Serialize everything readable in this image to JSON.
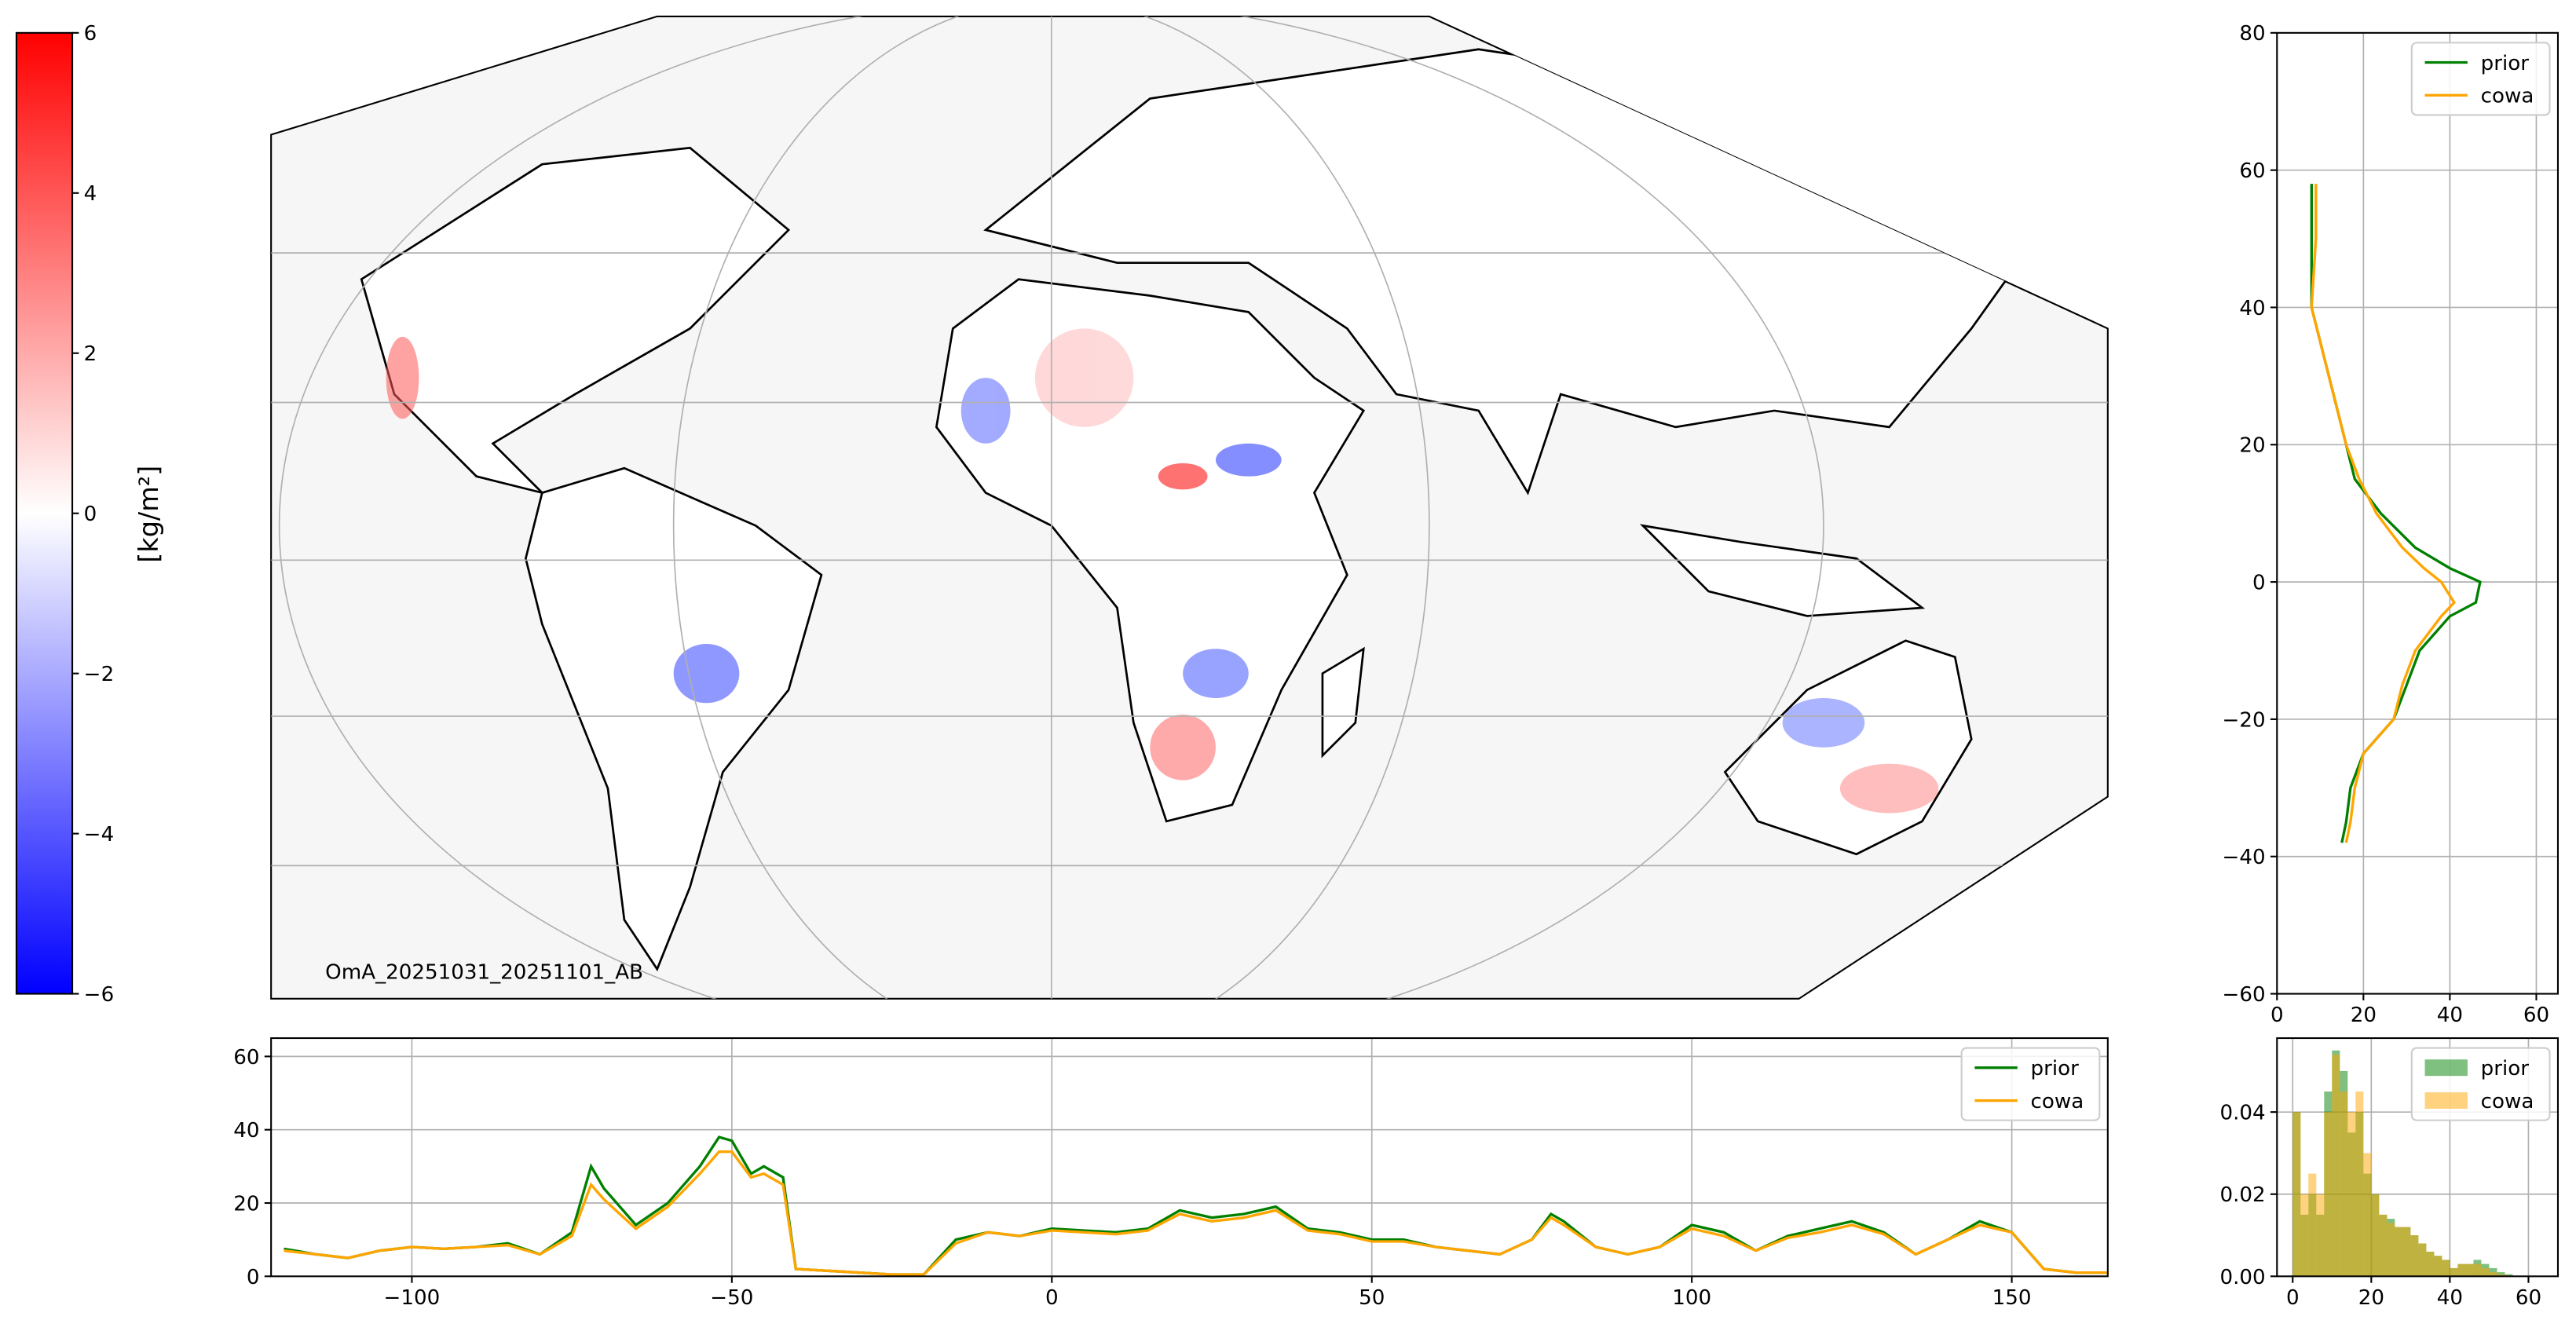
{
  "chart_data": [
    {
      "type": "colorbar",
      "label": "[kg/m²]",
      "colors": [
        "#0000ff",
        "#ffffff",
        "#ff0000"
      ],
      "ylim": [
        -6,
        6
      ],
      "yticks": [
        {
          "value": -6,
          "label": "−6"
        },
        {
          "value": -4,
          "label": "−4"
        },
        {
          "value": -2,
          "label": "−2"
        },
        0,
        2,
        4,
        6
      ]
    },
    {
      "type": "map",
      "annotation": "OmA_20251031_20251101_AB",
      "grid": true
    },
    {
      "type": "line",
      "xlim": [
        -122,
        165
      ],
      "ylim": [
        0,
        65
      ],
      "xticks": [
        {
          "value": -100,
          "label": "−100"
        },
        {
          "value": -50,
          "label": "−50"
        },
        0,
        50,
        100,
        150
      ],
      "yticks": [
        0,
        20,
        40,
        60
      ],
      "grid": true,
      "legend": "upper right",
      "x": [
        -120,
        -115,
        -110,
        -105,
        -100,
        -95,
        -90,
        -85,
        -80,
        -75,
        -72,
        -70,
        -65,
        -60,
        -55,
        -52,
        -50,
        -47,
        -45,
        -42,
        -40,
        -35,
        -30,
        -25,
        -20,
        -15,
        -10,
        -5,
        0,
        5,
        10,
        15,
        20,
        25,
        30,
        35,
        40,
        45,
        50,
        55,
        60,
        65,
        70,
        75,
        78,
        80,
        85,
        90,
        95,
        100,
        105,
        110,
        115,
        120,
        125,
        130,
        135,
        140,
        145,
        150,
        155,
        160,
        165
      ],
      "series": [
        {
          "name": "prior",
          "color": "#008000",
          "values": [
            7.5,
            6,
            5,
            7,
            8,
            7.5,
            8,
            9,
            6,
            12,
            30,
            24,
            14,
            20,
            30,
            38,
            37,
            28,
            30,
            27,
            2,
            1.5,
            1,
            0.5,
            0.5,
            10,
            12,
            11,
            13,
            12.5,
            12,
            13,
            18,
            16,
            17,
            19,
            13,
            12,
            10,
            10,
            8,
            7,
            6,
            10,
            17,
            15,
            8,
            6,
            8,
            14,
            12,
            7,
            11,
            13,
            15,
            12,
            6,
            10,
            15,
            12,
            2,
            1,
            1
          ]
        },
        {
          "name": "cowa",
          "color": "#ffa500",
          "values": [
            7,
            6,
            5,
            7,
            8,
            7.5,
            8,
            8.5,
            6,
            11,
            25,
            21,
            13,
            19,
            28,
            34,
            34,
            27,
            28,
            25,
            2,
            1.5,
            1,
            0.5,
            0.5,
            9,
            12,
            11,
            12.5,
            12,
            11.5,
            12.5,
            17,
            15,
            16,
            18,
            12.5,
            11.5,
            9.5,
            9.5,
            8,
            7,
            6,
            10,
            16,
            14,
            8,
            6,
            8,
            13,
            11,
            7,
            10.5,
            12,
            14,
            11.5,
            6,
            10,
            14,
            12,
            2,
            1,
            1
          ]
        }
      ]
    },
    {
      "type": "profile",
      "xlim": [
        0,
        65
      ],
      "ylim": [
        -60,
        80
      ],
      "xticks": [
        0,
        20,
        40,
        60
      ],
      "yticks": [
        {
          "value": -60,
          "label": "−60"
        },
        {
          "value": -40,
          "label": "−40"
        },
        {
          "value": -20,
          "label": "−20"
        },
        0,
        20,
        40,
        60,
        80
      ],
      "grid": true,
      "legend": "upper right",
      "y": [
        58,
        50,
        40,
        30,
        20,
        15,
        10,
        5,
        2,
        0,
        -3,
        -5,
        -10,
        -15,
        -20,
        -25,
        -30,
        -35,
        -38
      ],
      "series": [
        {
          "name": "prior",
          "color": "#008000",
          "values": [
            8,
            8,
            8,
            12,
            16,
            18,
            24,
            32,
            40,
            47,
            46,
            40,
            33,
            30,
            27,
            20,
            17,
            16,
            15
          ]
        },
        {
          "name": "cowa",
          "color": "#ffa500",
          "values": [
            9,
            9,
            8,
            12,
            16,
            19,
            23,
            29,
            34,
            38,
            41,
            38,
            32,
            29,
            27,
            20,
            18,
            17,
            16
          ]
        }
      ]
    },
    {
      "type": "histogram",
      "xlim": [
        -4,
        67.5
      ],
      "ylim": [
        0,
        0.058
      ],
      "xticks": [
        0,
        20,
        40,
        60
      ],
      "yticks": [
        {
          "value": 0,
          "label": "0.00"
        },
        0.02,
        0.04
      ],
      "grid": true,
      "legend": "upper right",
      "bins": [
        0,
        2,
        4,
        6,
        8,
        10,
        12,
        14,
        16,
        18,
        20,
        22,
        24,
        26,
        28,
        30,
        32,
        34,
        36,
        38,
        40,
        42,
        44,
        46,
        48,
        50,
        52,
        54,
        56
      ],
      "series": [
        {
          "name": "prior",
          "color": "#008000",
          "values": [
            0.04,
            0.015,
            0.02,
            0.015,
            0.045,
            0.055,
            0.05,
            0.035,
            0.04,
            0.025,
            0.02,
            0.015,
            0.014,
            0.012,
            0.012,
            0.01,
            0.008,
            0.006,
            0.005,
            0.004,
            0.002,
            0.003,
            0.003,
            0.004,
            0.003,
            0.002,
            0.001,
            0.0005
          ]
        },
        {
          "name": "cowa",
          "color": "#ffa500",
          "values": [
            0.04,
            0.02,
            0.025,
            0.02,
            0.04,
            0.054,
            0.045,
            0.04,
            0.045,
            0.03,
            0.02,
            0.015,
            0.013,
            0.012,
            0.012,
            0.01,
            0.008,
            0.006,
            0.005,
            0.004,
            0.002,
            0.003,
            0.003,
            0.003,
            0.002,
            0.001,
            0.0005,
            0.0002
          ]
        }
      ]
    }
  ]
}
